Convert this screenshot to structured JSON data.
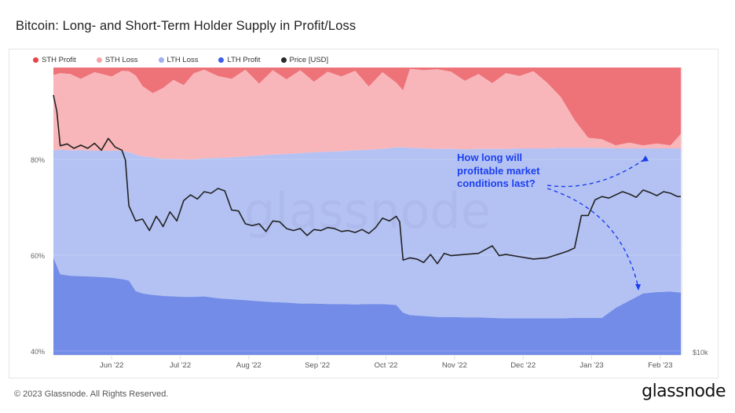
{
  "header": {
    "title": "Bitcoin: Long- and Short-Term Holder Supply in Profit/Loss"
  },
  "footer": {
    "copyright": "© 2023 Glassnode. All Rights Reserved.",
    "logo_text": "glassnode"
  },
  "watermark": "glassnode",
  "annotation": {
    "lines": [
      "How long will",
      "profitable market",
      "conditions last?"
    ],
    "color": "#1a3ff0"
  },
  "chart_data": {
    "type": "area",
    "title": "Bitcoin: Long- and Short-Term Holder Supply in Profit/Loss",
    "stacking": "stacked-percent",
    "legend": [
      {
        "name": "STH Profit",
        "color": "#ee7379"
      },
      {
        "name": "STH Loss",
        "color": "#f8b6ba"
      },
      {
        "name": "LTH Loss",
        "color": "#b4c2f3"
      },
      {
        "name": "LTH Profit",
        "color": "#738ce8"
      },
      {
        "name": "Price [USD]",
        "color": "#2b2b2b"
      }
    ],
    "legend_position": "top-left",
    "y_axis": {
      "ticks": [
        "40%",
        "60%",
        "80%"
      ],
      "tick_values": [
        40,
        60,
        80
      ],
      "range": [
        40,
        100
      ]
    },
    "y2_axis": {
      "ticks": [
        "$10k"
      ],
      "scale": "log"
    },
    "x_axis": {
      "ticks": [
        "Jun '22",
        "Jul '22",
        "Aug '22",
        "Sep '22",
        "Oct '22",
        "Nov '22",
        "Dec '22",
        "Jan '23",
        "Feb '23"
      ],
      "range_months": [
        0,
        9.15
      ]
    },
    "series_boundaries_note": "values are cumulative % from bottom: lth_profit_top, lth_top (=LTH Profit+LTH Loss), sth_loss_top; above sth_loss_top is STH Profit up to 100%",
    "t": [
      0,
      0.1,
      0.25,
      0.4,
      0.6,
      0.85,
      1.0,
      1.1,
      1.2,
      1.3,
      1.45,
      1.6,
      1.75,
      1.9,
      2.05,
      2.2,
      2.4,
      2.6,
      2.8,
      3.0,
      3.2,
      3.4,
      3.6,
      3.8,
      4.0,
      4.2,
      4.4,
      4.6,
      4.8,
      5.0,
      5.1,
      5.2,
      5.4,
      5.6,
      5.8,
      6.0,
      6.2,
      6.4,
      6.6,
      6.8,
      7.0,
      7.2,
      7.4,
      7.6,
      7.8,
      8.0,
      8.2,
      8.4,
      8.6,
      8.8,
      9.0,
      9.15
    ],
    "lth_profit_top": [
      59.5,
      56,
      55.7,
      55.6,
      55.5,
      55.3,
      55.0,
      54.7,
      52.5,
      52.0,
      51.7,
      51.5,
      51.4,
      51.3,
      51.3,
      51.4,
      51.0,
      50.8,
      50.6,
      50.4,
      50.2,
      50.1,
      49.9,
      49.9,
      49.8,
      49.8,
      49.7,
      49.8,
      49.8,
      49.6,
      48.0,
      47.5,
      47.3,
      47.1,
      47.1,
      47.0,
      47.0,
      46.9,
      46.8,
      46.8,
      46.8,
      46.8,
      46.8,
      46.9,
      46.9,
      46.9,
      49.0,
      50.5,
      52.0,
      52.3,
      52.4,
      52.2
    ],
    "lth_top": [
      81.9,
      82.0,
      81.9,
      81.9,
      81.8,
      81.8,
      81.8,
      81.5,
      81.0,
      80.6,
      80.4,
      80.1,
      80.1,
      80.0,
      80.0,
      80.2,
      80.3,
      80.4,
      80.6,
      80.8,
      81.0,
      81.1,
      81.3,
      81.5,
      81.6,
      81.7,
      81.9,
      82.0,
      82.2,
      82.5,
      82.5,
      82.4,
      82.3,
      82.2,
      82.2,
      82.1,
      82.2,
      82.2,
      82.2,
      82.3,
      82.3,
      82.3,
      82.4,
      82.4,
      82.4,
      82.4,
      82.3,
      82.3,
      82.3,
      82.3,
      82.3,
      82.3
    ],
    "sth_loss_top": [
      97.6,
      98.0,
      97.8,
      96.8,
      98.2,
      97.3,
      98.5,
      98.4,
      97.5,
      95.3,
      93.8,
      94.9,
      96.6,
      95.5,
      98.0,
      98.7,
      97.4,
      96.8,
      98.7,
      95.8,
      98.6,
      96.7,
      98.6,
      96.2,
      98.3,
      97.3,
      98.5,
      95.2,
      98.2,
      96.0,
      94.4,
      98.9,
      98.6,
      98.8,
      98.3,
      96.4,
      97.8,
      95.9,
      98.0,
      97.4,
      98.4,
      96.0,
      93.0,
      88.2,
      84.5,
      84.2,
      82.9,
      83.5,
      82.9,
      83.3,
      82.9,
      85.3
    ],
    "price_t": [
      0,
      0.05,
      0.1,
      0.2,
      0.3,
      0.4,
      0.5,
      0.6,
      0.7,
      0.8,
      0.9,
      1.0,
      1.05,
      1.1,
      1.2,
      1.3,
      1.4,
      1.5,
      1.55,
      1.6,
      1.7,
      1.8,
      1.9,
      2.0,
      2.1,
      2.2,
      2.3,
      2.4,
      2.5,
      2.6,
      2.7,
      2.8,
      2.9,
      3.0,
      3.1,
      3.2,
      3.3,
      3.4,
      3.5,
      3.6,
      3.7,
      3.8,
      3.9,
      4.0,
      4.1,
      4.2,
      4.3,
      4.4,
      4.5,
      4.6,
      4.7,
      4.8,
      4.9,
      5.0,
      5.05,
      5.1,
      5.2,
      5.3,
      5.4,
      5.5,
      5.6,
      5.7,
      5.8,
      6.0,
      6.2,
      6.4,
      6.5,
      6.6,
      6.8,
      7.0,
      7.2,
      7.4,
      7.5,
      7.6,
      7.7,
      7.8,
      7.9,
      8.0,
      8.1,
      8.2,
      8.3,
      8.4,
      8.5,
      8.6,
      8.7,
      8.8,
      8.9,
      9.0,
      9.1,
      9.15
    ],
    "price_usd": [
      39500,
      36200,
      30200,
      30500,
      29800,
      30300,
      29800,
      30600,
      29500,
      31400,
      30000,
      29500,
      28000,
      22000,
      20300,
      20500,
      19300,
      20800,
      20300,
      19700,
      21300,
      20300,
      22600,
      23300,
      22800,
      23700,
      23500,
      24100,
      23800,
      21500,
      21400,
      20000,
      19800,
      20000,
      19200,
      20300,
      20200,
      19500,
      19300,
      19500,
      18800,
      19400,
      19300,
      19600,
      19500,
      19200,
      19300,
      19100,
      19400,
      19000,
      19600,
      20600,
      20300,
      20800,
      20200,
      16500,
      16700,
      16600,
      16300,
      17000,
      16200,
      17100,
      16900,
      17000,
      17100,
      17800,
      16900,
      17000,
      16800,
      16600,
      16700,
      17100,
      17300,
      17600,
      20900,
      20900,
      22700,
      23100,
      22900,
      23300,
      23700,
      23400,
      23000,
      23900,
      23600,
      23200,
      23700,
      23500,
      23100,
      23100
    ]
  }
}
